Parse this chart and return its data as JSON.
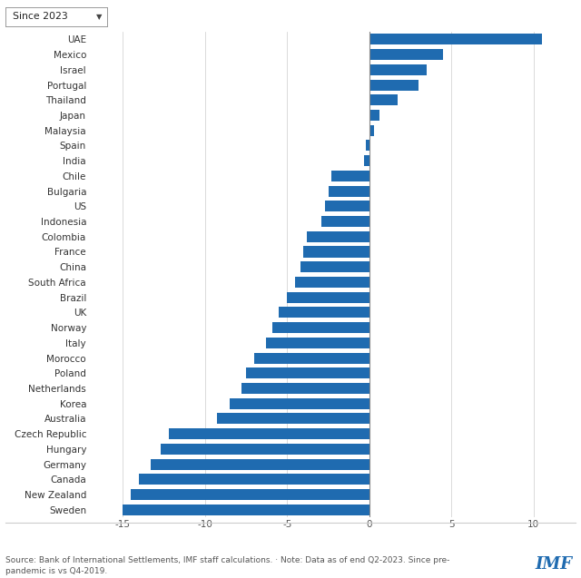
{
  "countries": [
    "UAE",
    "Mexico",
    "Israel",
    "Portugal",
    "Thailand",
    "Japan",
    "Malaysia",
    "Spain",
    "India",
    "Chile",
    "Bulgaria",
    "US",
    "Indonesia",
    "Colombia",
    "France",
    "China",
    "South Africa",
    "Brazil",
    "UK",
    "Norway",
    "Italy",
    "Morocco",
    "Poland",
    "Netherlands",
    "Korea",
    "Australia",
    "Czech Republic",
    "Hungary",
    "Germany",
    "Canada",
    "New Zealand",
    "Sweden"
  ],
  "values": [
    10.5,
    4.5,
    3.5,
    3.0,
    1.7,
    0.6,
    0.3,
    -0.2,
    -0.3,
    -2.3,
    -2.5,
    -2.7,
    -2.9,
    -3.8,
    -4.0,
    -4.2,
    -4.5,
    -5.0,
    -5.5,
    -5.9,
    -6.3,
    -7.0,
    -7.5,
    -7.8,
    -8.5,
    -9.3,
    -12.2,
    -12.7,
    -13.3,
    -14.0,
    -14.5,
    -15.0
  ],
  "bar_color": "#1f6bb0",
  "xlim": [
    -17,
    12
  ],
  "xticks": [
    -15,
    -10,
    -5,
    0,
    5,
    10
  ],
  "source_text": "Source: Bank of International Settlements, IMF staff calculations. · Note: Data as of end Q2-2023. Since pre-\npandemic is vs Q4-2019.",
  "imf_color": "#1f6bb0",
  "dropdown_text": "Since 2023",
  "label_fontsize": 7.5,
  "tick_fontsize": 7.5
}
